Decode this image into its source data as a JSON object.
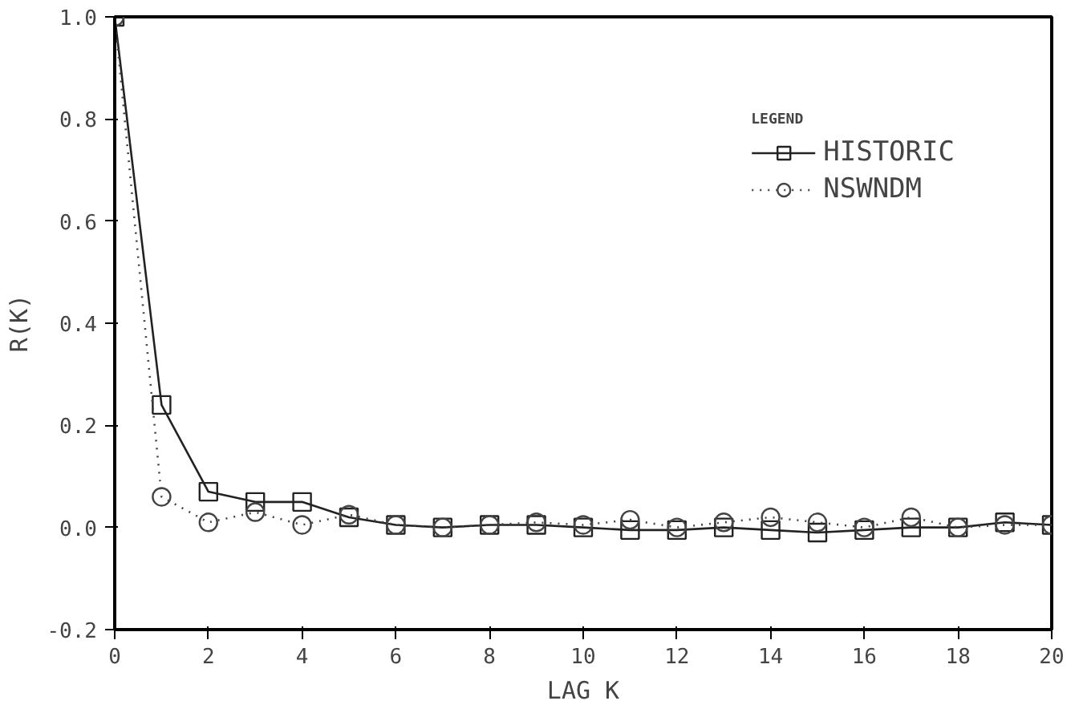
{
  "chart_data": {
    "type": "line",
    "xlabel": "LAG K",
    "ylabel": "R(K)",
    "legend_title": "LEGEND",
    "legend": "top right",
    "grid": false,
    "x": [
      0,
      1,
      2,
      3,
      4,
      5,
      6,
      7,
      8,
      9,
      10,
      11,
      12,
      13,
      14,
      15,
      16,
      17,
      18,
      19,
      20
    ],
    "xlim": [
      0,
      20
    ],
    "xticks": [
      0,
      2,
      4,
      6,
      8,
      10,
      12,
      14,
      16,
      18,
      20
    ],
    "ylim": [
      -0.2,
      1.0
    ],
    "yticks": [
      {
        "value": -0.2,
        "label": "-0.2"
      },
      {
        "value": 0,
        "label": "0.0"
      },
      0.2,
      0.4,
      0.6,
      0.8,
      {
        "value": 1,
        "label": "1.0"
      }
    ],
    "series": [
      {
        "name": "HISTORIC",
        "color": "#222222",
        "marker": "square",
        "line_style": "solid",
        "values": [
          1.0,
          0.24,
          0.07,
          0.05,
          0.05,
          0.02,
          0.005,
          0.0,
          0.005,
          0.005,
          0.0,
          -0.005,
          -0.005,
          0.0,
          -0.005,
          -0.01,
          -0.005,
          0.0,
          0.0,
          0.01,
          0.005
        ]
      },
      {
        "name": "NSWNDM",
        "color": "#444444",
        "marker": "circle",
        "line_style": "dotted",
        "values": [
          1.0,
          0.06,
          0.01,
          0.03,
          0.005,
          0.025,
          0.005,
          0.0,
          0.005,
          0.01,
          0.005,
          0.015,
          0.0,
          0.01,
          0.02,
          0.01,
          0.0,
          0.02,
          0.0,
          0.005,
          0.005
        ]
      }
    ]
  }
}
